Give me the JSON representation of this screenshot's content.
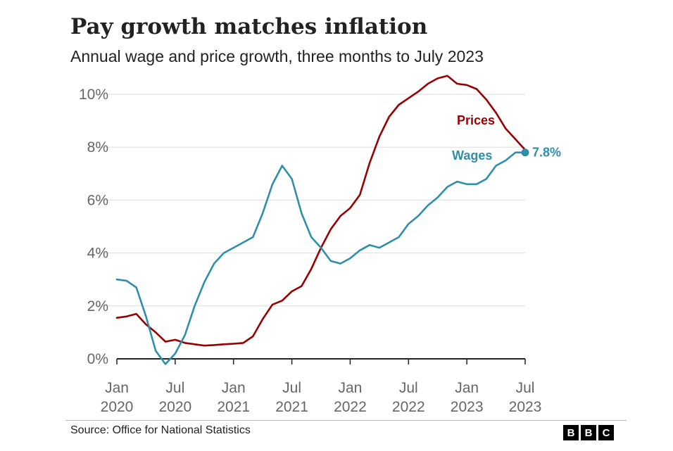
{
  "header": {
    "title": "Pay growth matches inflation",
    "subtitle": "Annual wage and price growth, three months to July 2023"
  },
  "footer": {
    "source": "Source: Office for National Statistics",
    "logo_letters": [
      "B",
      "B",
      "C"
    ]
  },
  "colors": {
    "prices": "#990000",
    "wages": "#2f8fa8",
    "grid": "#dddddd",
    "axis": "#222222"
  },
  "chart_data": {
    "type": "line",
    "title": "Pay growth matches inflation",
    "subtitle": "Annual wage and price growth, three months to July 2023",
    "ylim": [
      0,
      10
    ],
    "grid": true,
    "y_ticks": [
      {
        "value": 0,
        "label": "0%"
      },
      {
        "value": 2,
        "label": "2%"
      },
      {
        "value": 4,
        "label": "4%"
      },
      {
        "value": 6,
        "label": "6%"
      },
      {
        "value": 8,
        "label": "8%"
      },
      {
        "value": 10,
        "label": "10%"
      }
    ],
    "x_ticks": [
      {
        "x": "2020-01",
        "line1": "Jan",
        "line2": "2020"
      },
      {
        "x": "2020-07",
        "line1": "Jul",
        "line2": "2020"
      },
      {
        "x": "2021-01",
        "line1": "Jan",
        "line2": "2021"
      },
      {
        "x": "2021-07",
        "line1": "Jul",
        "line2": "2021"
      },
      {
        "x": "2022-01",
        "line1": "Jan",
        "line2": "2022"
      },
      {
        "x": "2022-07",
        "line1": "Jul",
        "line2": "2022"
      },
      {
        "x": "2023-01",
        "line1": "Jan",
        "line2": "2023"
      },
      {
        "x": "2023-07",
        "line1": "Jul",
        "line2": "2023"
      }
    ],
    "x": [
      "2020-01",
      "2020-02",
      "2020-03",
      "2020-04",
      "2020-05",
      "2020-06",
      "2020-07",
      "2020-08",
      "2020-09",
      "2020-10",
      "2020-11",
      "2020-12",
      "2021-01",
      "2021-02",
      "2021-03",
      "2021-04",
      "2021-05",
      "2021-06",
      "2021-07",
      "2021-08",
      "2021-09",
      "2021-10",
      "2021-11",
      "2021-12",
      "2022-01",
      "2022-02",
      "2022-03",
      "2022-04",
      "2022-05",
      "2022-06",
      "2022-07",
      "2022-08",
      "2022-09",
      "2022-10",
      "2022-11",
      "2022-12",
      "2023-01",
      "2023-02",
      "2023-03",
      "2023-04",
      "2023-05",
      "2023-06",
      "2023-07"
    ],
    "series": [
      {
        "name": "Prices",
        "color": "#990000",
        "values": [
          1.55,
          1.6,
          1.7,
          1.3,
          1.0,
          0.65,
          0.72,
          0.6,
          0.55,
          0.5,
          0.52,
          0.55,
          0.57,
          0.6,
          0.85,
          1.5,
          2.05,
          2.2,
          2.55,
          2.75,
          3.4,
          4.2,
          4.9,
          5.4,
          5.7,
          6.2,
          7.4,
          8.4,
          9.15,
          9.6,
          9.85,
          10.1,
          10.4,
          10.6,
          10.7,
          10.4,
          10.35,
          10.2,
          9.8,
          9.3,
          8.7,
          8.3,
          7.9
        ]
      },
      {
        "name": "Wages",
        "color": "#2f8fa8",
        "values": [
          3.0,
          2.95,
          2.7,
          1.6,
          0.3,
          -0.2,
          0.2,
          0.9,
          2.0,
          2.9,
          3.6,
          4.0,
          4.2,
          4.4,
          4.6,
          5.5,
          6.6,
          7.3,
          6.8,
          5.5,
          4.6,
          4.2,
          3.7,
          3.6,
          3.8,
          4.1,
          4.3,
          4.2,
          4.4,
          4.6,
          5.1,
          5.4,
          5.8,
          6.1,
          6.5,
          6.7,
          6.6,
          6.6,
          6.8,
          7.3,
          7.5,
          7.8,
          7.8
        ]
      }
    ],
    "annotations": {
      "prices_label": "Prices",
      "wages_label": "Wages",
      "end_value_label": "7.8%",
      "end_value": 7.8
    }
  }
}
